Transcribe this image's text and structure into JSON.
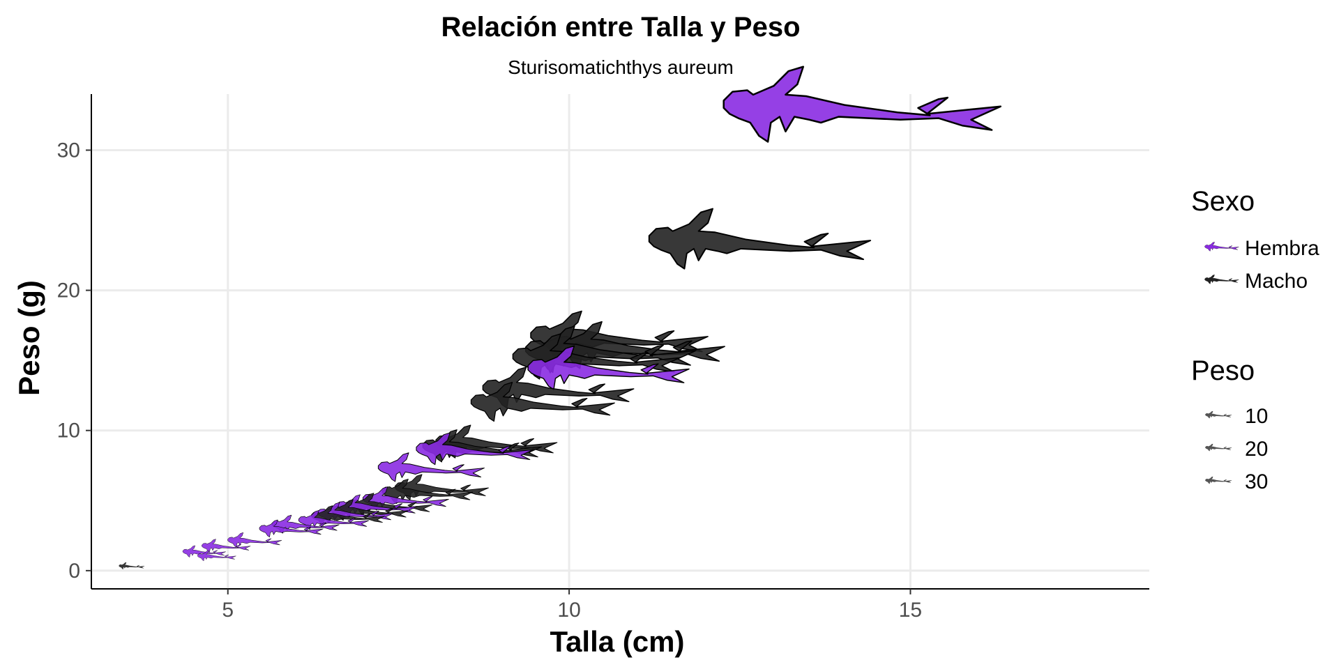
{
  "chart_data": {
    "type": "scatter",
    "title": "Relación entre Talla y Peso",
    "subtitle": "Sturisomatichthys aureum",
    "xlabel": "Talla (cm)",
    "ylabel": "Peso (g)",
    "xlim": [
      3,
      18.5
    ],
    "ylim": [
      -1.3,
      34
    ],
    "xticks": [
      5,
      10,
      15
    ],
    "yticks": [
      0,
      10,
      20,
      30
    ],
    "grid": true,
    "marker": "fish-silhouette",
    "size_by": "Peso",
    "color_by": "Sexo",
    "legend": {
      "placement": "right",
      "sexo_title": "Sexo",
      "sexo_items": [
        {
          "label": "Hembra",
          "color": "#8a2be2"
        },
        {
          "label": "Macho",
          "color": "#222222"
        }
      ],
      "peso_title": "Peso",
      "peso_items": [
        {
          "label": "10",
          "value": 10
        },
        {
          "label": "20",
          "value": 20
        },
        {
          "label": "30",
          "value": 30
        }
      ]
    },
    "series": [
      {
        "name": "Hembra",
        "color": "#8a2be2",
        "points": [
          {
            "x": 13.3,
            "y": 32.8
          },
          {
            "x": 10.0,
            "y": 14.2
          },
          {
            "x": 8.2,
            "y": 8.5
          },
          {
            "x": 7.6,
            "y": 7.2
          },
          {
            "x": 7.3,
            "y": 5.0
          },
          {
            "x": 6.9,
            "y": 4.5
          },
          {
            "x": 6.6,
            "y": 4.0
          },
          {
            "x": 6.3,
            "y": 3.5
          },
          {
            "x": 5.9,
            "y": 3.2
          },
          {
            "x": 5.7,
            "y": 2.9
          },
          {
            "x": 5.2,
            "y": 2.1
          },
          {
            "x": 4.8,
            "y": 1.7
          },
          {
            "x": 4.5,
            "y": 1.3
          },
          {
            "x": 4.7,
            "y": 1.0
          }
        ]
      },
      {
        "name": "Macho",
        "color": "#222222",
        "points": [
          {
            "x": 12.0,
            "y": 23.3
          },
          {
            "x": 10.1,
            "y": 16.5
          },
          {
            "x": 10.0,
            "y": 15.5
          },
          {
            "x": 9.8,
            "y": 15.0
          },
          {
            "x": 10.4,
            "y": 15.8
          },
          {
            "x": 9.3,
            "y": 12.8
          },
          {
            "x": 9.1,
            "y": 11.8
          },
          {
            "x": 8.5,
            "y": 9.0
          },
          {
            "x": 8.3,
            "y": 8.7
          },
          {
            "x": 7.8,
            "y": 5.8
          },
          {
            "x": 7.6,
            "y": 5.5
          },
          {
            "x": 7.1,
            "y": 4.6
          },
          {
            "x": 6.8,
            "y": 4.2
          },
          {
            "x": 6.5,
            "y": 3.8
          },
          {
            "x": 3.5,
            "y": 0.3
          }
        ]
      }
    ]
  }
}
